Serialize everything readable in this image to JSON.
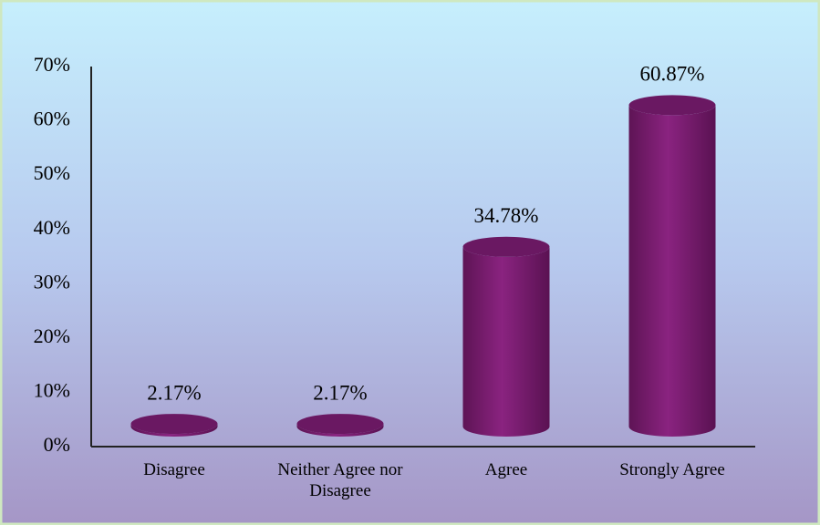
{
  "chart_data": {
    "type": "bar",
    "categories": [
      "Disagree",
      "Neither Agree nor Disagree",
      "Agree",
      "Strongly Agree"
    ],
    "values": [
      2.17,
      2.17,
      34.78,
      60.87
    ],
    "value_labels": [
      "2.17%",
      "2.17%",
      "34.78%",
      "60.87%"
    ],
    "color": "#7e1f72",
    "ylim": [
      0,
      70
    ],
    "yticks": [
      {
        "value": 0,
        "label": "0%"
      },
      {
        "value": 10,
        "label": "10%"
      },
      {
        "value": 20,
        "label": "20%"
      },
      {
        "value": 30,
        "label": "30%"
      },
      {
        "value": 40,
        "label": "40%"
      },
      {
        "value": 50,
        "label": "50%"
      },
      {
        "value": 60,
        "label": "60%"
      },
      {
        "value": 70,
        "label": "70%"
      }
    ],
    "grid": false
  }
}
